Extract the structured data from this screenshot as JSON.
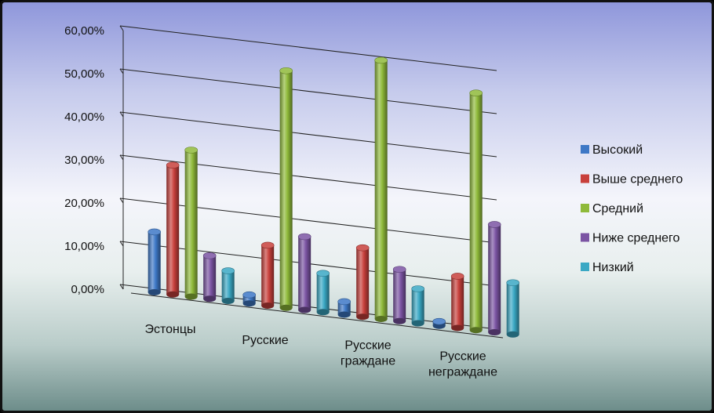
{
  "chart_data": {
    "type": "bar",
    "title": "",
    "xlabel": "",
    "ylabel": "",
    "ylim": [
      0,
      60
    ],
    "y_tick_labels": [
      "0,00%",
      "10,00%",
      "20,00%",
      "30,00%",
      "40,00%",
      "50,00%",
      "60,00%"
    ],
    "y_ticks": [
      0,
      10,
      20,
      30,
      40,
      50,
      60
    ],
    "unit": "%",
    "grid": true,
    "legend_position": "right",
    "style": "3d-cylinder",
    "categories": [
      [
        "Эстонцы"
      ],
      [
        "Русские"
      ],
      [
        "Русские",
        "граждане"
      ],
      [
        "Русские",
        "неграждане"
      ]
    ],
    "series": [
      {
        "name": "Высокий",
        "color": "#3e78c6",
        "values": [
          14,
          2,
          3,
          1
        ]
      },
      {
        "name": "Выше среднего",
        "color": "#c8403c",
        "values": [
          30,
          14,
          16,
          12
        ]
      },
      {
        "name": "Средний",
        "color": "#8fba3a",
        "values": [
          34,
          55,
          60,
          55
        ]
      },
      {
        "name": "Ниже среднего",
        "color": "#7b54a3",
        "values": [
          10,
          17,
          12,
          25
        ]
      },
      {
        "name": "Низкий",
        "color": "#3aa8c4",
        "values": [
          7,
          9,
          8,
          12
        ]
      }
    ]
  }
}
